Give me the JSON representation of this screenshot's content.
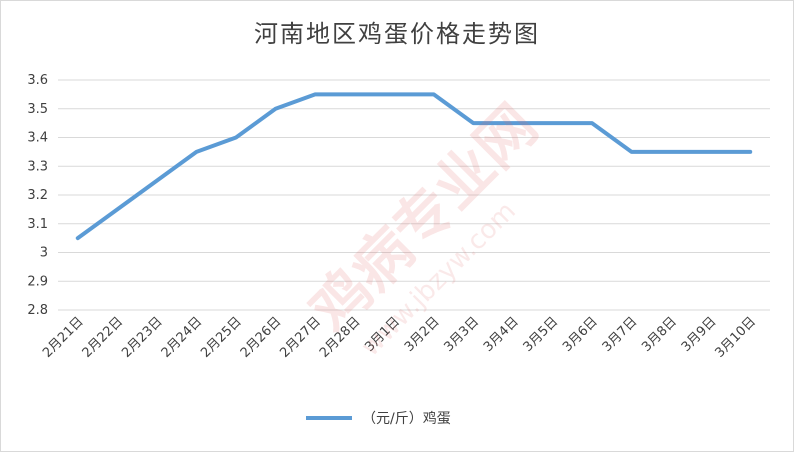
{
  "chart_data": {
    "type": "line",
    "title": "河南地区鸡蛋价格走势图",
    "categories": [
      "2月21日",
      "2月22日",
      "2月23日",
      "2月24日",
      "2月25日",
      "2月26日",
      "2月27日",
      "2月28日",
      "3月1日",
      "3月2日",
      "3月3日",
      "3月4日",
      "3月5日",
      "3月6日",
      "3月7日",
      "3月8日",
      "3月9日",
      "3月10日"
    ],
    "series": [
      {
        "name": "（元/斤）鸡蛋",
        "color": "#5b9bd5",
        "values": [
          3.05,
          3.15,
          3.25,
          3.35,
          3.4,
          3.5,
          3.55,
          3.55,
          3.55,
          3.55,
          3.45,
          3.45,
          3.45,
          3.45,
          3.35,
          3.35,
          3.35,
          3.35
        ]
      }
    ],
    "ylim": [
      2.8,
      3.6
    ],
    "yticks": [
      2.8,
      2.9,
      3,
      3.1,
      3.2,
      3.3,
      3.4,
      3.5,
      3.6
    ],
    "ytick_labels": [
      "2.8",
      "2.9",
      "3",
      "3.1",
      "3.2",
      "3.3",
      "3.4",
      "3.5",
      "3.6"
    ],
    "grid": true,
    "legend_position": "bottom"
  },
  "watermark": {
    "main": "鸡病专业网",
    "url": "www.jbzyw.com"
  }
}
